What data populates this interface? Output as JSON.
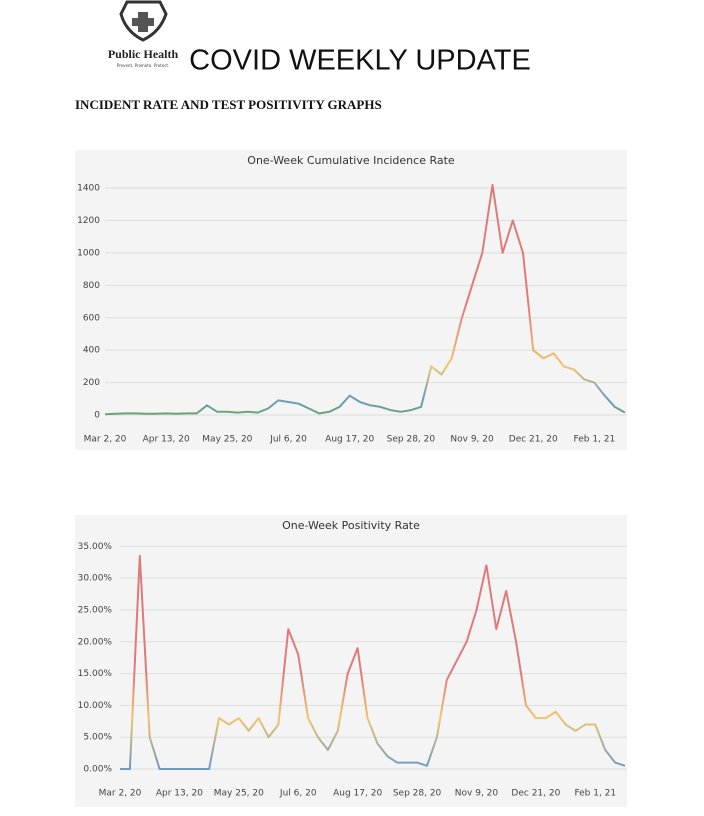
{
  "header": {
    "logo_text": "Public Health",
    "tagline": "Prevent. Promote. Protect.",
    "title": "COVID WEEKLY UPDATE"
  },
  "section_title": "INCIDENT RATE AND TEST POSITIVITY GRAPHS",
  "chart_data": [
    {
      "type": "line",
      "title": "One-Week Cumulative Incidence Rate",
      "categories": [
        "Mar 2, 20",
        null,
        null,
        null,
        null,
        null,
        "Apr 13, 20",
        null,
        null,
        null,
        null,
        null,
        "May 25, 20",
        null,
        null,
        null,
        null,
        null,
        "Jul 6, 20",
        null,
        null,
        null,
        null,
        null,
        "Aug 17, 20",
        null,
        null,
        null,
        null,
        null,
        "Sep 28, 20",
        null,
        null,
        null,
        null,
        null,
        "Nov 9, 20",
        null,
        null,
        null,
        null,
        null,
        "Dec 21, 20",
        null,
        null,
        null,
        null,
        null,
        "Feb 1, 21",
        null,
        null,
        null
      ],
      "values": [
        5,
        8,
        10,
        10,
        8,
        8,
        10,
        8,
        10,
        10,
        60,
        20,
        20,
        15,
        20,
        15,
        40,
        90,
        80,
        70,
        40,
        10,
        20,
        50,
        120,
        80,
        60,
        50,
        30,
        20,
        30,
        50,
        300,
        250,
        350,
        600,
        800,
        1000,
        1420,
        1000,
        1200,
        1000,
        400,
        350,
        380,
        300,
        280,
        220,
        200,
        120,
        50,
        15
      ],
      "color_stops": [
        {
          "value": 0,
          "color": "#6aa56a"
        },
        {
          "value": 100,
          "color": "#6b9bc3"
        },
        {
          "value": 300,
          "color": "#f2c46c"
        },
        {
          "value": 700,
          "color": "#e07a7a"
        }
      ],
      "ylim": [
        0,
        1450
      ],
      "yticks": [
        0,
        200,
        400,
        600,
        800,
        1000,
        1200,
        1400
      ],
      "grid": true
    },
    {
      "type": "line",
      "title": "One-Week Positivity Rate",
      "categories": [
        "Mar 2, 20",
        null,
        null,
        null,
        null,
        null,
        "Apr 13, 20",
        null,
        null,
        null,
        null,
        null,
        "May 25, 20",
        null,
        null,
        null,
        null,
        null,
        "Jul 6, 20",
        null,
        null,
        null,
        null,
        null,
        "Aug 17, 20",
        null,
        null,
        null,
        null,
        null,
        "Sep 28, 20",
        null,
        null,
        null,
        null,
        null,
        "Nov 9, 20",
        null,
        null,
        null,
        null,
        null,
        "Dec 21, 20",
        null,
        null,
        null,
        null,
        null,
        "Feb 1, 21",
        null,
        null,
        null
      ],
      "values": [
        0,
        0,
        33.5,
        5,
        0,
        0,
        0,
        0,
        0,
        0,
        8,
        7,
        8,
        6,
        8,
        5,
        7,
        22,
        18,
        8,
        5,
        3,
        6,
        15,
        19,
        8,
        4,
        2,
        1,
        1,
        1,
        0.5,
        5,
        14,
        17,
        20,
        25,
        32,
        22,
        28,
        20,
        10,
        8,
        8,
        9,
        7,
        6,
        7,
        7,
        3,
        1,
        0.5
      ],
      "color_stops": [
        {
          "value": 0,
          "color": "#6b9bc3"
        },
        {
          "value": 8,
          "color": "#f2c46c"
        },
        {
          "value": 15,
          "color": "#e07a7a"
        }
      ],
      "ylim": [
        0,
        36
      ],
      "yticks": [
        {
          "value": 0,
          "label": "0.00%"
        },
        {
          "value": 5,
          "label": "5.00%"
        },
        {
          "value": 10,
          "label": "10.00%"
        },
        {
          "value": 15,
          "label": "15.00%"
        },
        {
          "value": 20,
          "label": "20.00%"
        },
        {
          "value": 25,
          "label": "25.00%"
        },
        {
          "value": 30,
          "label": "30.00%"
        },
        {
          "value": 35,
          "label": "35.00%"
        }
      ],
      "grid": true
    }
  ]
}
